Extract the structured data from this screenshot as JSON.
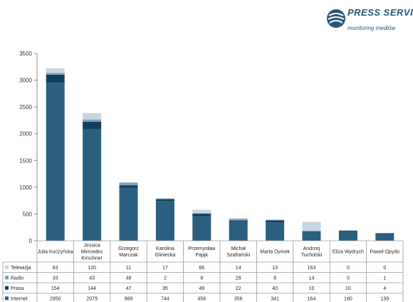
{
  "logo": {
    "name": "PRESS SERVICE",
    "tagline": "monitoring mediów"
  },
  "colors": {
    "Telewizja": "#c9d6df",
    "Radio": "#7f9fb5",
    "Prasa": "#103e5e",
    "Internet": "#2a5f80"
  },
  "chart_data": {
    "type": "bar",
    "stacked": true,
    "ylim": [
      0,
      3500
    ],
    "yticks": [
      0,
      500,
      1000,
      1500,
      2000,
      2500,
      3000,
      3500
    ],
    "grid": false,
    "legend": "table-left",
    "categories": [
      [
        "Julia Kuczyńska"
      ],
      [
        "Jessica",
        "Mercedes",
        "Kirschner"
      ],
      [
        "Grzegorz",
        "Marczak"
      ],
      [
        "Karolina",
        "Gliniecka"
      ],
      [
        "Przemysław",
        "Pająk"
      ],
      [
        "Michał",
        "Szafrański"
      ],
      [
        "Marta Dymek"
      ],
      [
        "Andrzej",
        "Tucholski"
      ],
      [
        "Eliza Wydrych"
      ],
      [
        "Paweł Opydo"
      ]
    ],
    "series": [
      {
        "name": "Telewizja",
        "values": [
          83,
          120,
          11,
          17,
          66,
          14,
          13,
          163,
          0,
          0
        ]
      },
      {
        "name": "Radio",
        "values": [
          33,
          43,
          48,
          2,
          8,
          28,
          8,
          14,
          0,
          1
        ]
      },
      {
        "name": "Prasa",
        "values": [
          154,
          144,
          47,
          35,
          49,
          22,
          40,
          10,
          10,
          4
        ]
      },
      {
        "name": "Internet",
        "values": [
          2950,
          2079,
          989,
          744,
          456,
          356,
          341,
          164,
          180,
          139
        ]
      }
    ]
  }
}
